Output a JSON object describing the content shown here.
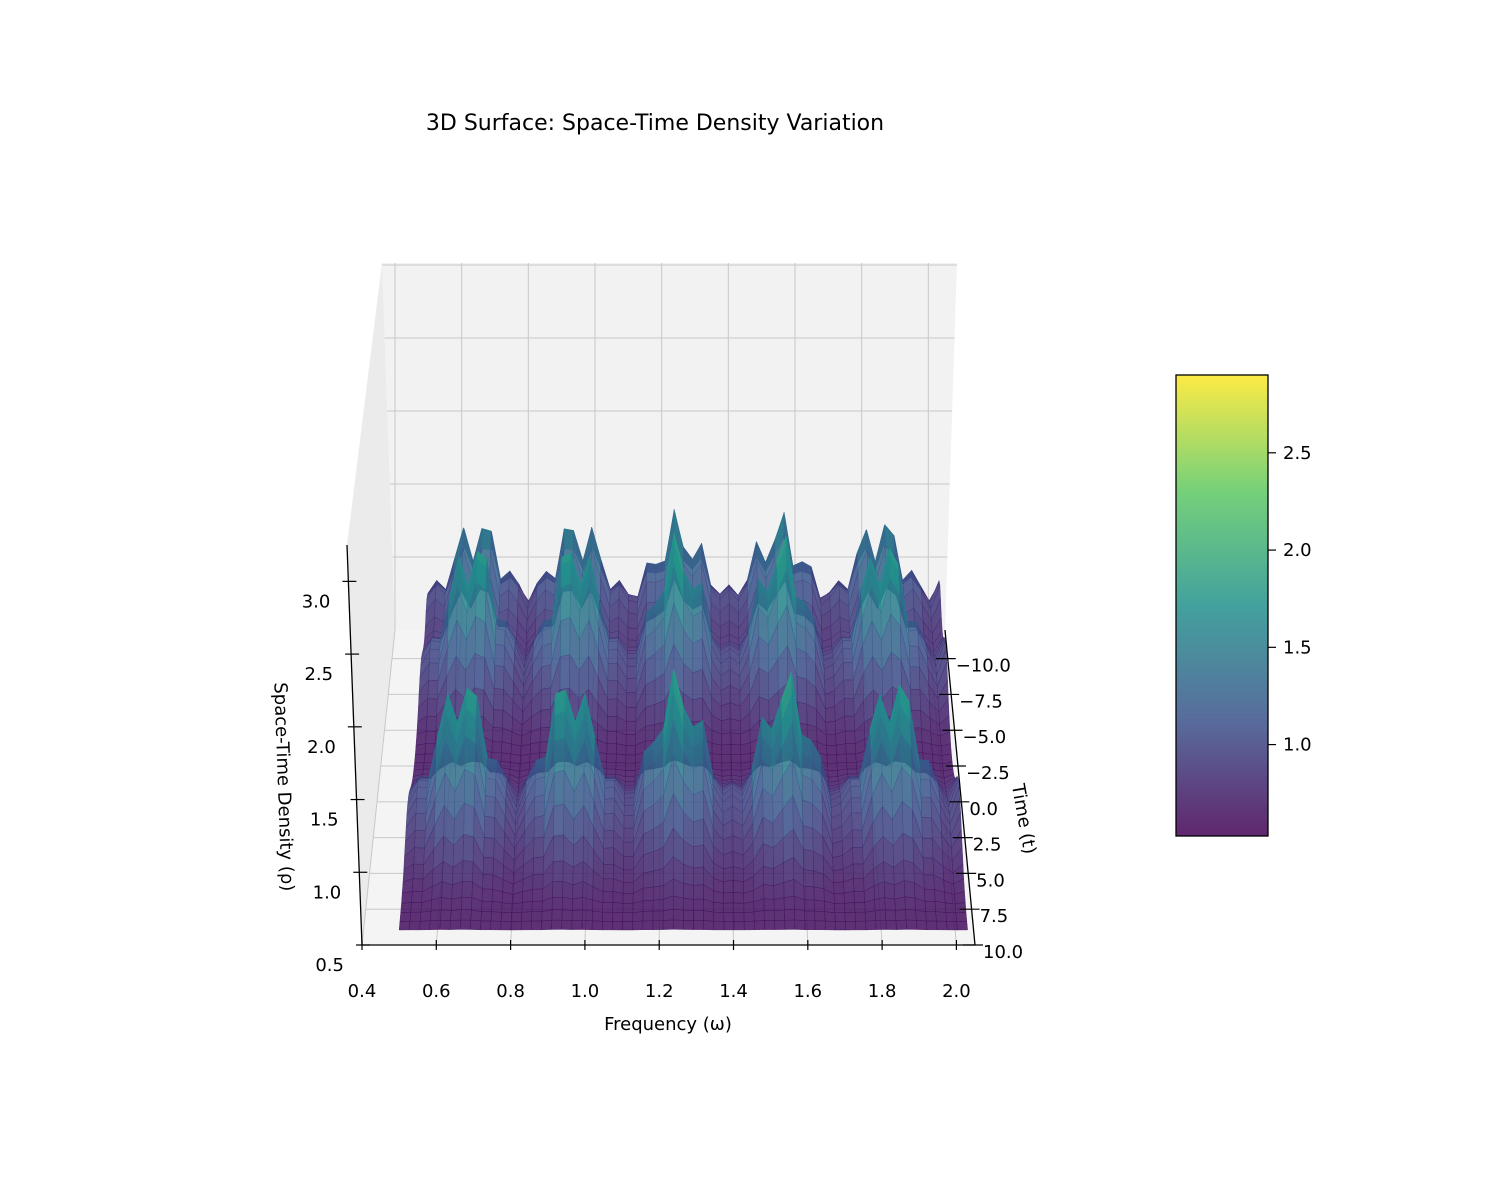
{
  "chart_data": {
    "type": "surface",
    "title": "3D Surface: Space-Time Density Variation",
    "xlabel": "Frequency (ω)",
    "ylabel": "Time (t)",
    "zlabel": "Space-Time Density (ρ)",
    "x_ticks": [
      "0.4",
      "0.6",
      "0.8",
      "1.0",
      "1.2",
      "1.4",
      "1.6",
      "1.8",
      "2.0"
    ],
    "y_ticks": [
      "−10.0",
      "−7.5",
      "−5.0",
      "−2.5",
      "0.0",
      "2.5",
      "5.0",
      "7.5",
      "10.0"
    ],
    "z_ticks": [
      "0.5",
      "1.0",
      "1.5",
      "2.0",
      "2.5",
      "3.0"
    ],
    "xlim": [
      0.4,
      2.05
    ],
    "ylim": [
      -12,
      10
    ],
    "zlim": [
      0.5,
      3.2
    ],
    "colorbar": {
      "colormap": "viridis",
      "range": [
        0.53,
        2.9
      ],
      "ticks": [
        "1.0",
        "1.5",
        "2.0",
        "2.5"
      ]
    },
    "colormap_stops": [
      "#440154",
      "#3b528b",
      "#21918c",
      "#5ec962",
      "#fde725"
    ],
    "grid": true
  }
}
